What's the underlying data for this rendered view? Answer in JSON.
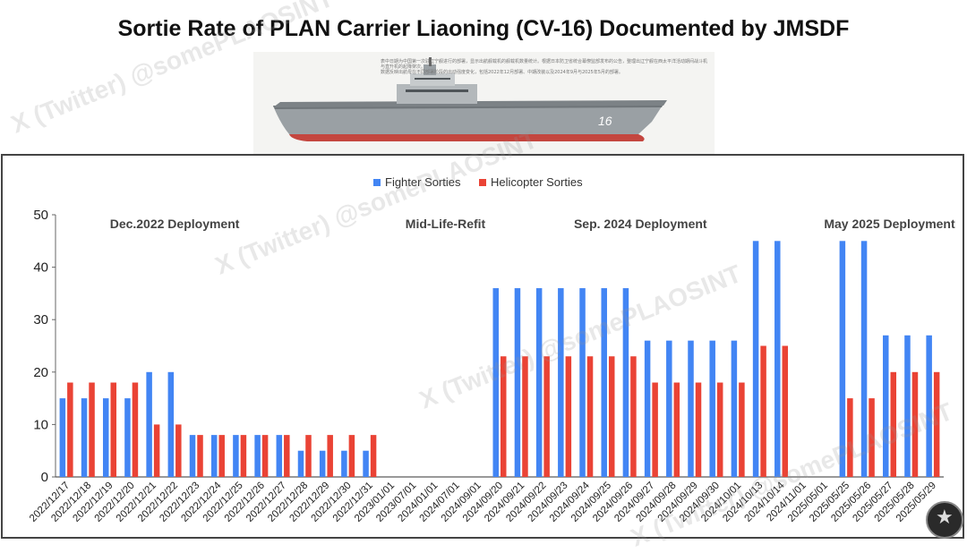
{
  "title": "Sortie Rate of PLAN Carrier Liaoning (CV-16) Documented by JMSDF",
  "ship_image": {
    "hull_number": "16",
    "caption_text": "表中日期为中国第一次驻辽宁舰进行的部署，显示出航舰载机的舰载机数量统计。根据日本防卫省统合幕僚监部发布的公告，整理出辽宁舰在西太平洋活动期间战斗机与直升机的起降架次。",
    "caption_text_2": "数据反映出航母在不同部署阶段的出动强度变化，包括2022年12月部署、中期改装以及2024年9月与2025年5月的部署。"
  },
  "watermark": "X (Twitter) @somePLAOSINT",
  "colors": {
    "fighter": "#4285F4",
    "helicopter": "#EA4335",
    "axis": "#666666",
    "grid": "#dddddd"
  },
  "chart_data": {
    "type": "bar",
    "title": "Sortie Rate of PLAN Carrier Liaoning (CV-16) Documented by JMSDF",
    "xlabel": "",
    "ylabel": "",
    "ylim": [
      0,
      50
    ],
    "yticks": [
      0,
      10,
      20,
      30,
      40,
      50
    ],
    "grid": false,
    "legend_position": "top-center",
    "categories": [
      "2022/12/17",
      "2022/12/18",
      "2022/12/19",
      "2022/12/20",
      "2022/12/21",
      "2022/12/22",
      "2022/12/23",
      "2022/12/24",
      "2022/12/25",
      "2022/12/26",
      "2022/12/27",
      "2022/12/28",
      "2022/12/29",
      "2022/12/30",
      "2022/12/31",
      "2023/01/01",
      "2023/07/01",
      "2024/01/01",
      "2024/07/01",
      "2024/09/01",
      "2024/09/20",
      "2024/09/21",
      "2024/09/22",
      "2024/09/23",
      "2024/09/24",
      "2024/09/25",
      "2024/09/26",
      "2024/09/27",
      "2024/09/28",
      "2024/09/29",
      "2024/09/30",
      "2024/10/01",
      "2024/10/13",
      "2024/10/14",
      "2024/11/01",
      "2025/05/01",
      "2025/05/25",
      "2025/05/26",
      "2025/05/27",
      "2025/05/28",
      "2025/05/29"
    ],
    "series": [
      {
        "name": "Fighter Sorties",
        "values": [
          15,
          15,
          15,
          15,
          20,
          20,
          8,
          8,
          8,
          8,
          8,
          5,
          5,
          5,
          5,
          null,
          null,
          null,
          null,
          null,
          36,
          36,
          36,
          36,
          36,
          36,
          36,
          26,
          26,
          26,
          26,
          26,
          45,
          45,
          null,
          null,
          45,
          45,
          27,
          27,
          27
        ]
      },
      {
        "name": "Helicopter Sorties",
        "values": [
          18,
          18,
          18,
          18,
          10,
          10,
          8,
          8,
          8,
          8,
          8,
          8,
          8,
          8,
          8,
          null,
          null,
          null,
          null,
          null,
          23,
          23,
          23,
          23,
          23,
          23,
          23,
          18,
          18,
          18,
          18,
          18,
          25,
          25,
          null,
          null,
          15,
          15,
          20,
          20,
          20
        ]
      }
    ],
    "annotations": [
      {
        "text": "Dec.2022 Deployment",
        "category_start": 0,
        "category_end": 10
      },
      {
        "text": "Mid-Life-Refit",
        "category_start": 16,
        "category_end": 19
      },
      {
        "text": "Sep. 2024 Deployment",
        "category_start": 22,
        "category_end": 31
      },
      {
        "text": "May 2025 Deployment",
        "category_start": 36,
        "category_end": 40
      }
    ]
  }
}
